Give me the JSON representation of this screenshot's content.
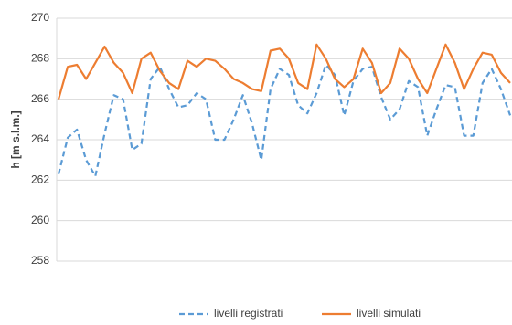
{
  "chart_data": {
    "type": "line",
    "ylabel": "h [m s.l.m.]",
    "ylim": [
      258,
      270
    ],
    "yticks": [
      258,
      260,
      262,
      264,
      266,
      268,
      270
    ],
    "grid": true,
    "legend": "bottom",
    "series": [
      {
        "name": "livelli registrati",
        "color": "#5b9bd5",
        "dash": true,
        "values": [
          262.3,
          264.1,
          264.5,
          263.0,
          262.2,
          264.3,
          266.2,
          266.0,
          263.5,
          263.8,
          267.0,
          267.6,
          266.5,
          265.6,
          265.7,
          266.3,
          266.0,
          264.0,
          264.0,
          265.0,
          266.2,
          264.8,
          263.0,
          266.5,
          267.5,
          267.2,
          265.7,
          265.3,
          266.3,
          267.7,
          267.2,
          265.2,
          266.9,
          267.5,
          267.6,
          266.1,
          265.0,
          265.5,
          266.9,
          266.6,
          264.2,
          265.5,
          266.7,
          266.6,
          264.2,
          264.2,
          266.8,
          267.5,
          266.5,
          265.2
        ]
      },
      {
        "name": "livelli simulati",
        "color": "#ed7d31",
        "dash": false,
        "values": [
          266.0,
          267.6,
          267.7,
          267.0,
          267.8,
          268.6,
          267.8,
          267.3,
          266.3,
          268.0,
          268.3,
          267.4,
          266.8,
          266.5,
          267.9,
          267.6,
          268.0,
          267.9,
          267.5,
          267.0,
          266.8,
          266.5,
          266.4,
          268.4,
          268.5,
          268.0,
          266.8,
          266.5,
          268.7,
          268.0,
          267.0,
          266.6,
          267.0,
          268.5,
          267.8,
          266.3,
          266.8,
          268.5,
          268.0,
          267.0,
          266.3,
          267.5,
          268.7,
          267.8,
          266.5,
          267.5,
          268.3,
          268.2,
          267.3,
          266.8
        ]
      }
    ]
  }
}
